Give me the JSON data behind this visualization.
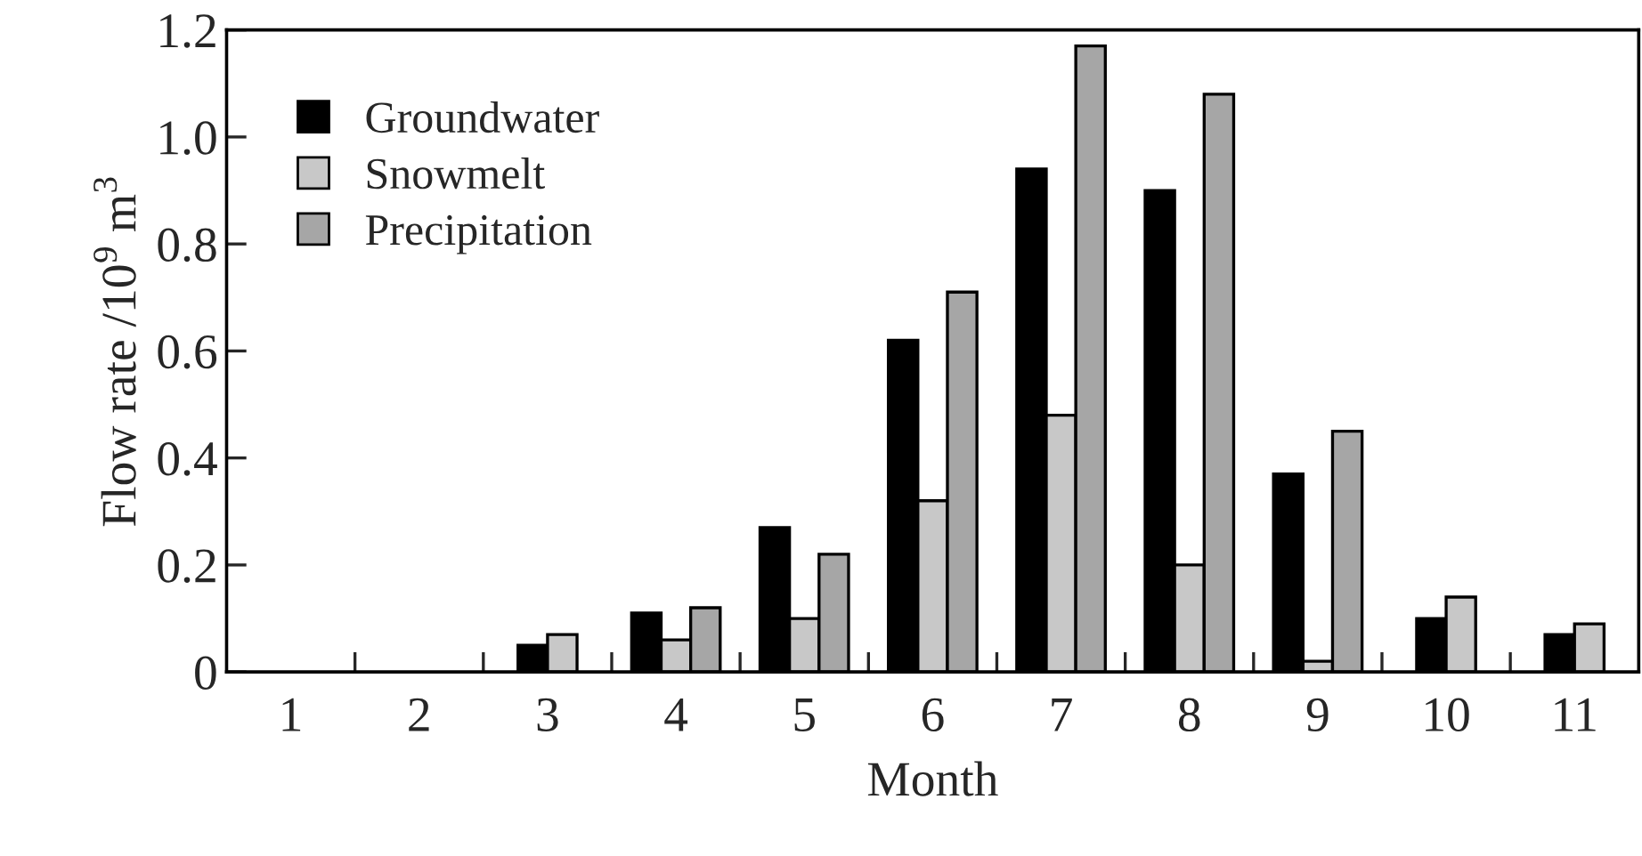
{
  "chart_data": {
    "type": "bar",
    "xlabel": "Month",
    "ylabel": "Flow rate /10$^{9}$ m$^{3}$",
    "categories": [
      "1",
      "2",
      "3",
      "4",
      "5",
      "6",
      "7",
      "8",
      "9",
      "10",
      "11"
    ],
    "series": [
      {
        "name": "Groundwater",
        "color": "#000000",
        "values": [
          null,
          null,
          0.05,
          0.11,
          0.27,
          0.62,
          0.94,
          0.9,
          0.37,
          0.1,
          0.07
        ]
      },
      {
        "name": "Snowmelt",
        "color": "#c8c8c8",
        "values": [
          null,
          null,
          0.07,
          0.06,
          0.1,
          0.32,
          0.48,
          0.2,
          0.02,
          0.14,
          0.09
        ]
      },
      {
        "name": "Precipitation",
        "color": "#a6a6a6",
        "values": [
          null,
          null,
          null,
          0.12,
          0.22,
          0.71,
          1.17,
          1.08,
          0.45,
          null,
          null
        ]
      }
    ],
    "ylim": [
      0,
      1.2
    ],
    "yticks": [
      0,
      0.2,
      0.4,
      0.6,
      0.8,
      {
        "value": 1,
        "label": "1.0"
      },
      1.2
    ],
    "grid": false,
    "legend": "top left"
  }
}
